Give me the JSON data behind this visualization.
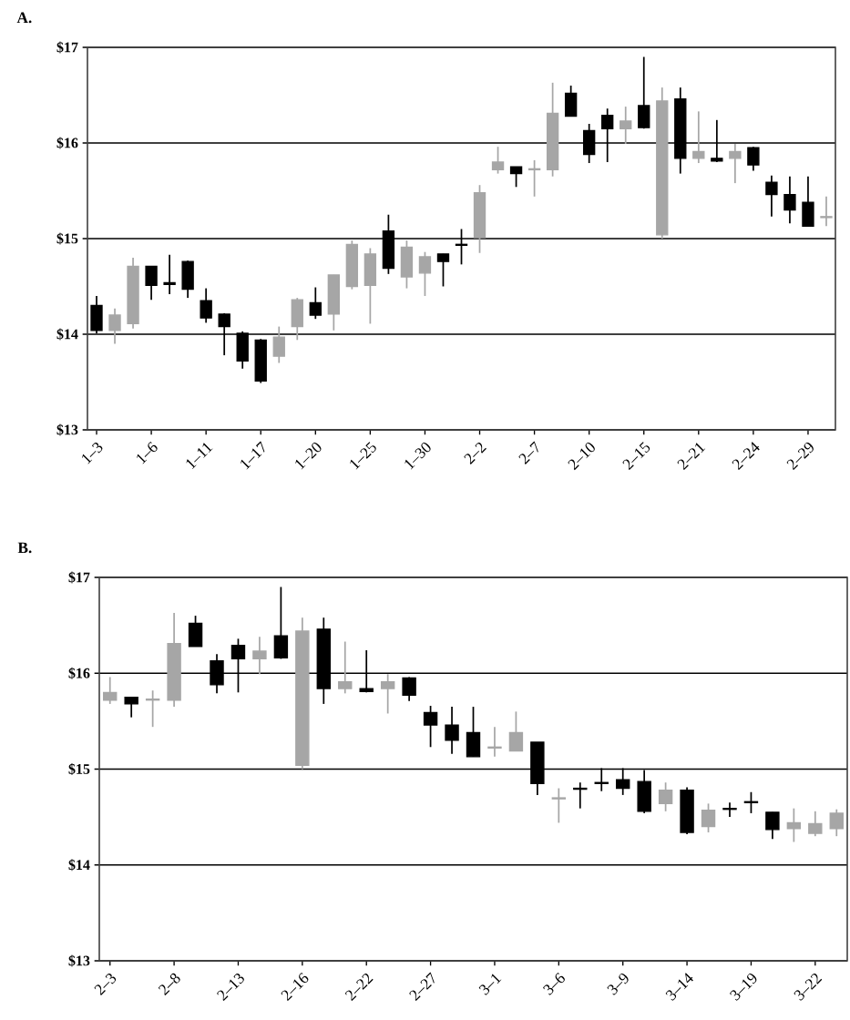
{
  "chart_data": [
    {
      "type": "candlestick",
      "title": "A.",
      "categories": [
        "1–3",
        null,
        null,
        "1–6",
        null,
        null,
        "1–11",
        null,
        null,
        "1–17",
        null,
        null,
        "1–20",
        null,
        null,
        "1–25",
        null,
        null,
        "1–30",
        null,
        null,
        "2–2",
        null,
        null,
        "2–7",
        null,
        null,
        "2–10",
        null,
        null,
        "2–15",
        null,
        null,
        "2–21",
        null,
        null,
        "2–24",
        null,
        null,
        "2–29",
        null
      ],
      "ohlc": [
        [
          14.3,
          14.4,
          14.01,
          14.04
        ],
        [
          14.04,
          14.27,
          13.9,
          14.2
        ],
        [
          14.11,
          14.8,
          14.06,
          14.71
        ],
        [
          14.71,
          14.71,
          14.36,
          14.51
        ],
        [
          14.54,
          14.83,
          14.42,
          14.52
        ],
        [
          14.76,
          14.77,
          14.38,
          14.47
        ],
        [
          14.35,
          14.48,
          14.12,
          14.17
        ],
        [
          14.21,
          14.22,
          13.78,
          14.08
        ],
        [
          14.01,
          14.03,
          13.64,
          13.72
        ],
        [
          13.94,
          13.95,
          13.49,
          13.51
        ],
        [
          13.77,
          14.08,
          13.7,
          13.97
        ],
        [
          14.08,
          14.38,
          13.94,
          14.36
        ],
        [
          14.33,
          14.49,
          14.16,
          14.2
        ],
        [
          14.21,
          14.62,
          14.04,
          14.62
        ],
        [
          14.5,
          14.98,
          14.47,
          14.94
        ],
        [
          14.51,
          14.9,
          14.11,
          14.84
        ],
        [
          15.08,
          15.25,
          14.63,
          14.69
        ],
        [
          14.6,
          14.98,
          14.48,
          14.91
        ],
        [
          14.64,
          14.86,
          14.4,
          14.81
        ],
        [
          14.84,
          14.84,
          14.5,
          14.76
        ],
        [
          14.94,
          15.1,
          14.73,
          14.93
        ],
        [
          15.01,
          15.56,
          14.85,
          15.48
        ],
        [
          15.72,
          15.96,
          15.68,
          15.8
        ],
        [
          15.75,
          15.75,
          15.54,
          15.68
        ],
        [
          15.72,
          15.82,
          15.44,
          15.73
        ],
        [
          15.72,
          16.63,
          15.65,
          16.31
        ],
        [
          16.52,
          16.6,
          16.28,
          16.28
        ],
        [
          16.13,
          16.2,
          15.79,
          15.88
        ],
        [
          16.29,
          16.36,
          15.8,
          16.15
        ],
        [
          16.15,
          16.38,
          15.99,
          16.23
        ],
        [
          16.39,
          16.9,
          16.15,
          16.16
        ],
        [
          15.04,
          16.58,
          15.0,
          16.44
        ],
        [
          16.46,
          16.58,
          15.68,
          15.84
        ],
        [
          15.84,
          16.33,
          15.79,
          15.91
        ],
        [
          15.84,
          16.24,
          15.8,
          15.81
        ],
        [
          15.84,
          15.99,
          15.58,
          15.91
        ],
        [
          15.95,
          15.96,
          15.71,
          15.77
        ],
        [
          15.59,
          15.66,
          15.23,
          15.46
        ],
        [
          15.46,
          15.65,
          15.16,
          15.3
        ],
        [
          15.38,
          15.65,
          15.13,
          15.13
        ],
        [
          15.22,
          15.44,
          15.13,
          15.23
        ]
      ],
      "colors": [
        "#000000",
        "#a6a6a6",
        "#a6a6a6",
        "#000000",
        "#000000",
        "#000000",
        "#000000",
        "#000000",
        "#000000",
        "#000000",
        "#a6a6a6",
        "#a6a6a6",
        "#000000",
        "#a6a6a6",
        "#a6a6a6",
        "#a6a6a6",
        "#000000",
        "#a6a6a6",
        "#a6a6a6",
        "#000000",
        "#000000",
        "#a6a6a6",
        "#a6a6a6",
        "#000000",
        "#a6a6a6",
        "#a6a6a6",
        "#000000",
        "#000000",
        "#000000",
        "#a6a6a6",
        "#000000",
        "#a6a6a6",
        "#000000",
        "#a6a6a6",
        "#000000",
        "#a6a6a6",
        "#000000",
        "#000000",
        "#000000",
        "#000000",
        "#a6a6a6"
      ],
      "ylim": [
        13,
        17
      ],
      "yticks": [
        {
          "value": 13,
          "label": "$13"
        },
        {
          "value": 14,
          "label": "$14"
        },
        {
          "value": 15,
          "label": "$15"
        },
        {
          "value": 16,
          "label": "$16"
        },
        {
          "value": 17,
          "label": "$17"
        }
      ],
      "grid": "y"
    },
    {
      "type": "candlestick",
      "title": "B.",
      "categories": [
        "2–3",
        null,
        null,
        "2–8",
        null,
        null,
        "2–13",
        null,
        null,
        "2–16",
        null,
        null,
        "2–22",
        null,
        null,
        "2–27",
        null,
        null,
        "3–1",
        null,
        null,
        "3–6",
        null,
        null,
        "3–9",
        null,
        null,
        "3–14",
        null,
        null,
        "3–19",
        null,
        null,
        "3–22",
        null
      ],
      "ohlc": [
        [
          15.72,
          15.96,
          15.68,
          15.8
        ],
        [
          15.75,
          15.75,
          15.54,
          15.68
        ],
        [
          15.72,
          15.82,
          15.44,
          15.73
        ],
        [
          15.72,
          16.63,
          15.65,
          16.31
        ],
        [
          16.52,
          16.6,
          16.28,
          16.28
        ],
        [
          16.13,
          16.2,
          15.79,
          15.88
        ],
        [
          16.29,
          16.36,
          15.8,
          16.15
        ],
        [
          16.15,
          16.38,
          15.99,
          16.23
        ],
        [
          16.39,
          16.9,
          16.15,
          16.16
        ],
        [
          15.04,
          16.58,
          15.0,
          16.44
        ],
        [
          16.46,
          16.58,
          15.68,
          15.84
        ],
        [
          15.84,
          16.33,
          15.79,
          15.91
        ],
        [
          15.84,
          16.24,
          15.8,
          15.81
        ],
        [
          15.84,
          15.99,
          15.58,
          15.91
        ],
        [
          15.95,
          15.96,
          15.71,
          15.77
        ],
        [
          15.59,
          15.66,
          15.23,
          15.46
        ],
        [
          15.46,
          15.65,
          15.16,
          15.3
        ],
        [
          15.38,
          15.65,
          15.13,
          15.13
        ],
        [
          15.22,
          15.44,
          15.13,
          15.23
        ],
        [
          15.19,
          15.6,
          15.19,
          15.38
        ],
        [
          15.28,
          15.28,
          14.73,
          14.85
        ],
        [
          14.69,
          14.8,
          14.44,
          14.7
        ],
        [
          14.8,
          14.86,
          14.59,
          14.79
        ],
        [
          14.86,
          15.01,
          14.77,
          14.85
        ],
        [
          14.89,
          15.01,
          14.73,
          14.8
        ],
        [
          14.87,
          14.99,
          14.54,
          14.56
        ],
        [
          14.64,
          14.86,
          14.56,
          14.78
        ],
        [
          14.78,
          14.81,
          14.32,
          14.34
        ],
        [
          14.4,
          14.64,
          14.34,
          14.57
        ],
        [
          14.59,
          14.65,
          14.5,
          14.58
        ],
        [
          14.66,
          14.76,
          14.54,
          14.65
        ],
        [
          14.55,
          14.55,
          14.27,
          14.37
        ],
        [
          14.38,
          14.59,
          14.24,
          14.44
        ],
        [
          14.33,
          14.56,
          14.3,
          14.43
        ],
        [
          14.38,
          14.58,
          14.3,
          14.54
        ]
      ],
      "colors": [
        "#a6a6a6",
        "#000000",
        "#a6a6a6",
        "#a6a6a6",
        "#000000",
        "#000000",
        "#000000",
        "#a6a6a6",
        "#000000",
        "#a6a6a6",
        "#000000",
        "#a6a6a6",
        "#000000",
        "#a6a6a6",
        "#000000",
        "#000000",
        "#000000",
        "#000000",
        "#a6a6a6",
        "#a6a6a6",
        "#000000",
        "#a6a6a6",
        "#000000",
        "#000000",
        "#000000",
        "#000000",
        "#a6a6a6",
        "#000000",
        "#a6a6a6",
        "#000000",
        "#000000",
        "#000000",
        "#a6a6a6",
        "#a6a6a6",
        "#a6a6a6"
      ],
      "ylim": [
        13,
        17
      ],
      "yticks": [
        {
          "value": 13,
          "label": "$13"
        },
        {
          "value": 14,
          "label": "$14"
        },
        {
          "value": 15,
          "label": "$15"
        },
        {
          "value": 16,
          "label": "$16"
        },
        {
          "value": 17,
          "label": "$17"
        }
      ],
      "grid": "y"
    }
  ]
}
